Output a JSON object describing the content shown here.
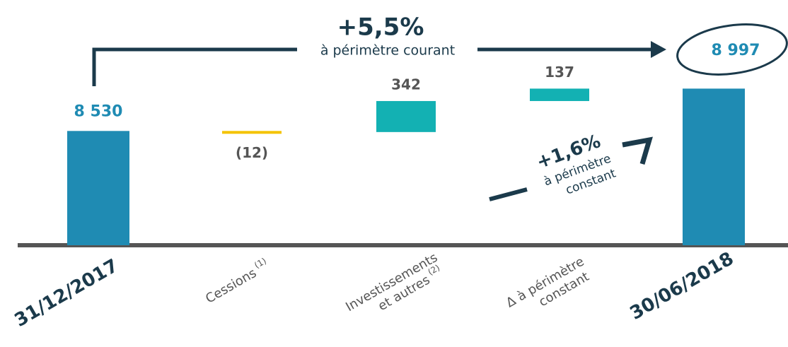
{
  "chart_data": {
    "type": "waterfall",
    "categories": [
      {
        "lines": [
          "31/12/2017"
        ]
      },
      {
        "lines": [
          "Cessions"
        ],
        "note": "(1)"
      },
      {
        "lines": [
          "Investissements",
          "et autres"
        ],
        "note": "(2)"
      },
      {
        "lines": [
          "Δ à périmètre",
          "constant"
        ]
      },
      {
        "lines": [
          "30/06/2018"
        ]
      }
    ],
    "values": [
      8530,
      -12,
      342,
      137,
      8997
    ],
    "value_labels": [
      "8 530",
      "(12)",
      "342",
      "137",
      "8 997"
    ],
    "measure": [
      "total",
      "relative",
      "relative",
      "relative",
      "total"
    ],
    "colors": [
      "#1f8bb3",
      "#f4c300",
      "#13b1b3",
      "#13b1b3",
      "#1f8bb3"
    ],
    "ylim": [
      7270,
      9000
    ],
    "annotations": [
      {
        "big": "+5,5%",
        "small": [
          "à périmètre courant"
        ]
      },
      {
        "big": "+1,6%",
        "small": [
          "à périmètre",
          "constant"
        ]
      }
    ]
  }
}
